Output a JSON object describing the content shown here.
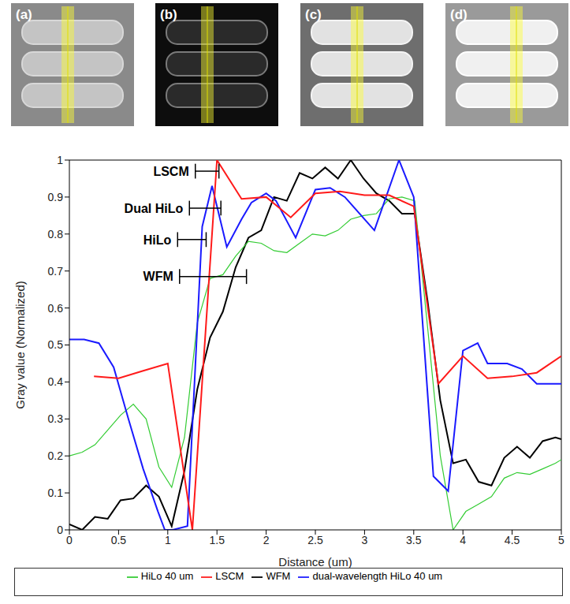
{
  "panels": [
    "(a)",
    "(b)",
    "(c)",
    "(d)"
  ],
  "chart_data": {
    "type": "line",
    "xlabel": "Distance (um)",
    "ylabel": "Gray value (Normalized)",
    "xlim": [
      0,
      5
    ],
    "xticks": [
      0,
      0.5,
      1,
      1.5,
      2,
      2.5,
      3,
      3.5,
      4,
      4.5,
      5
    ],
    "ylim": [
      0,
      1
    ],
    "yticks": [
      0,
      0.1,
      0.2,
      0.3,
      0.4,
      0.5,
      0.6,
      0.7,
      0.8,
      0.9,
      1
    ],
    "legend": "bottom",
    "series": [
      {
        "name": "WFM",
        "color": "#000000",
        "x": [
          0,
          0.13,
          0.26,
          0.39,
          0.52,
          0.65,
          0.78,
          0.91,
          1.04,
          1.17,
          1.3,
          1.43,
          1.56,
          1.69,
          1.82,
          1.95,
          2.08,
          2.21,
          2.34,
          2.47,
          2.6,
          2.73,
          2.86,
          2.99,
          3.12,
          3.25,
          3.38,
          3.51,
          3.64,
          3.77,
          3.9,
          4.03,
          4.16,
          4.29,
          4.42,
          4.55,
          4.68,
          4.81,
          4.94,
          5
        ],
        "values": [
          0.015,
          0,
          0.035,
          0.03,
          0.08,
          0.085,
          0.12,
          0.09,
          0.01,
          0.16,
          0.38,
          0.52,
          0.59,
          0.71,
          0.79,
          0.81,
          0.9,
          0.89,
          0.965,
          0.95,
          0.98,
          0.95,
          1.0,
          0.95,
          0.91,
          0.89,
          0.855,
          0.855,
          0.62,
          0.35,
          0.18,
          0.19,
          0.13,
          0.12,
          0.195,
          0.225,
          0.195,
          0.24,
          0.25,
          0.245
        ]
      },
      {
        "name": "HiLo 40 um",
        "color": "#33cc33",
        "x": [
          0,
          0.13,
          0.26,
          0.39,
          0.52,
          0.65,
          0.78,
          0.91,
          1.04,
          1.17,
          1.3,
          1.43,
          1.56,
          1.69,
          1.82,
          1.95,
          2.08,
          2.21,
          2.34,
          2.47,
          2.6,
          2.73,
          2.86,
          2.99,
          3.12,
          3.25,
          3.38,
          3.51,
          3.64,
          3.77,
          3.9,
          4.03,
          4.16,
          4.29,
          4.42,
          4.55,
          4.68,
          4.81,
          4.94,
          5
        ],
        "values": [
          0.2,
          0.21,
          0.23,
          0.27,
          0.31,
          0.34,
          0.3,
          0.17,
          0.115,
          0.25,
          0.56,
          0.68,
          0.69,
          0.74,
          0.78,
          0.775,
          0.755,
          0.75,
          0.775,
          0.8,
          0.795,
          0.81,
          0.84,
          0.85,
          0.855,
          0.895,
          0.9,
          0.89,
          0.55,
          0.2,
          0,
          0.05,
          0.07,
          0.09,
          0.14,
          0.155,
          0.15,
          0.165,
          0.18,
          0.19
        ]
      },
      {
        "name": "dual-wavelength HiLo 40 um",
        "color": "#1a1aff",
        "x": [
          0,
          0.15,
          0.3,
          0.45,
          0.6,
          0.75,
          0.9,
          0.97,
          1.05,
          1.2,
          1.35,
          1.45,
          1.6,
          1.75,
          1.85,
          2.0,
          2.1,
          2.3,
          2.5,
          2.65,
          2.8,
          3.1,
          3.35,
          3.5,
          3.7,
          3.85,
          4.0,
          4.15,
          4.25,
          4.45,
          4.6,
          4.75,
          5
        ],
        "values": [
          0.515,
          0.515,
          0.505,
          0.44,
          0.3,
          0.165,
          0.05,
          0,
          0,
          0.01,
          0.82,
          0.93,
          0.765,
          0.84,
          0.885,
          0.91,
          0.89,
          0.79,
          0.92,
          0.925,
          0.9,
          0.81,
          1.0,
          0.9,
          0.145,
          0.105,
          0.485,
          0.505,
          0.45,
          0.45,
          0.435,
          0.395,
          0.395
        ]
      },
      {
        "name": "LSCM",
        "color": "#ff1a1a",
        "x": [
          0.25,
          0.5,
          0.75,
          1.0,
          1.25,
          1.5,
          1.75,
          2.0,
          2.25,
          2.5,
          2.75,
          3.0,
          3.25,
          3.5,
          3.75,
          4.0,
          4.25,
          4.5,
          4.75,
          5
        ],
        "values": [
          0.415,
          0.41,
          0.43,
          0.45,
          0,
          1.0,
          0.895,
          0.9,
          0.845,
          0.91,
          0.915,
          0.905,
          0.905,
          0.875,
          0.395,
          0.47,
          0.41,
          0.415,
          0.425,
          0.47
        ]
      }
    ],
    "annotations": [
      {
        "text": "LSCM",
        "x": [
          1.28,
          1.52
        ],
        "y": 0.97
      },
      {
        "text": "Dual HiLo",
        "x": [
          1.22,
          1.54
        ],
        "y": 0.87
      },
      {
        "text": "HiLo",
        "x": [
          1.1,
          1.39
        ],
        "y": 0.785
      },
      {
        "text": "WFM",
        "x": [
          1.12,
          1.8
        ],
        "y": 0.685
      }
    ]
  }
}
